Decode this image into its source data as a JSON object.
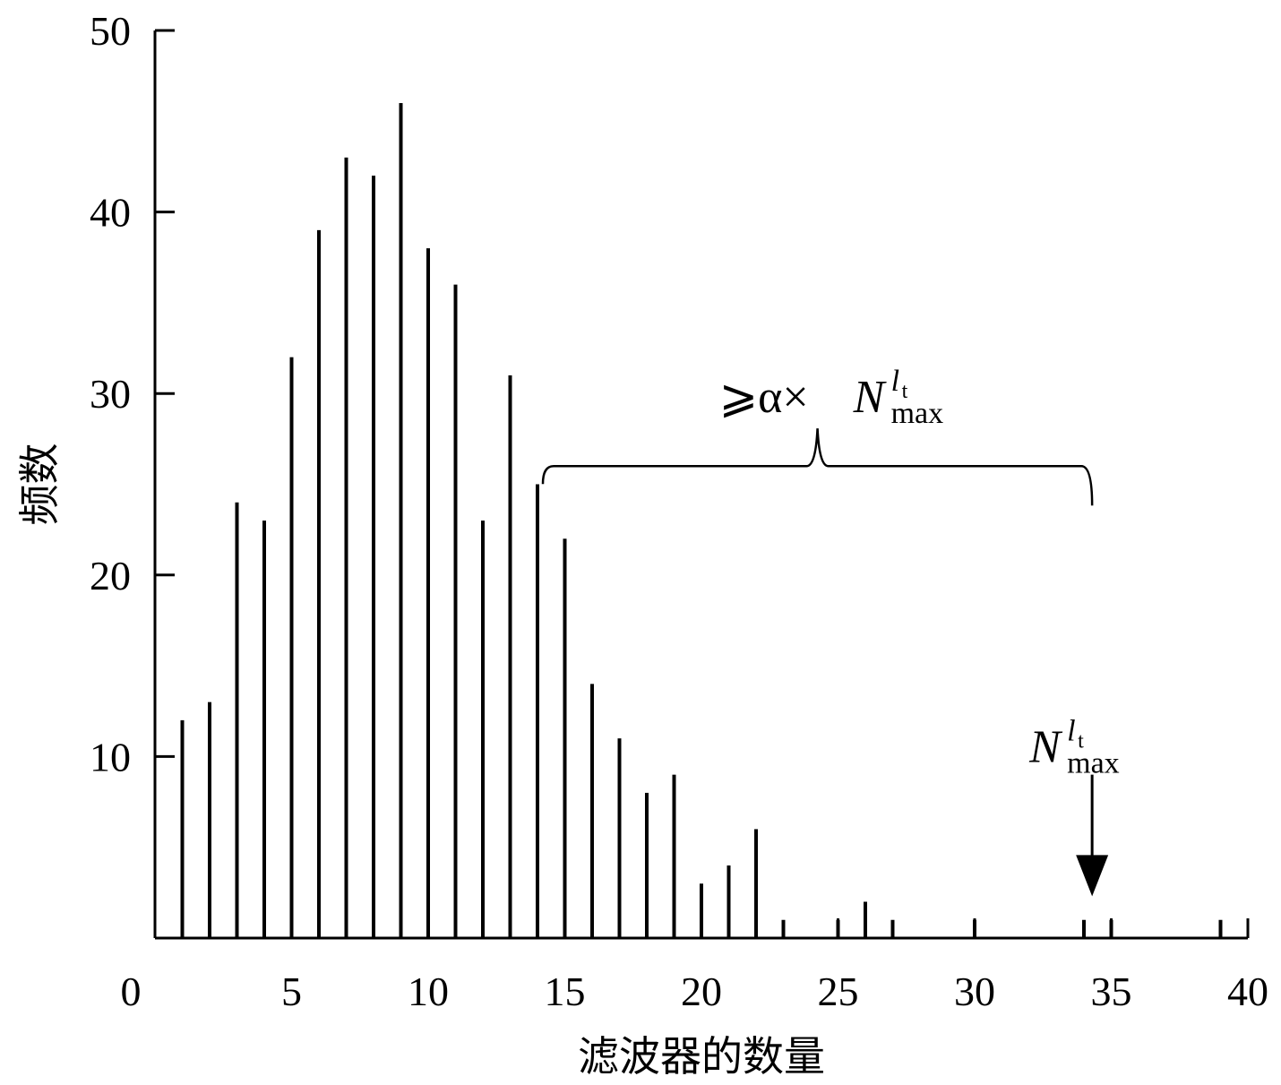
{
  "chart_data": {
    "type": "bar",
    "xlabel": "滤波器的数量",
    "ylabel": "频数",
    "xlim": [
      0,
      40
    ],
    "ylim": [
      0,
      50
    ],
    "xticks": [
      0,
      5,
      10,
      15,
      20,
      25,
      30,
      35,
      40
    ],
    "yticks": [
      10,
      20,
      30,
      40,
      50
    ],
    "tick_labels_x": [
      "0",
      "5",
      "10",
      "15",
      "20",
      "25",
      "30",
      "35",
      "40"
    ],
    "tick_labels_y": [
      "10",
      "20",
      "30",
      "40",
      "50"
    ],
    "grid": false,
    "x": [
      1,
      2,
      3,
      4,
      5,
      6,
      7,
      8,
      9,
      10,
      11,
      12,
      13,
      14,
      15,
      16,
      17,
      18,
      19,
      20,
      21,
      22,
      23,
      24,
      25,
      26,
      27,
      28,
      29,
      30,
      31,
      32,
      33,
      34,
      35,
      36,
      37,
      38,
      39
    ],
    "values": [
      12,
      13,
      24,
      23,
      32,
      39,
      43,
      42,
      46,
      38,
      36,
      23,
      31,
      25,
      22,
      14,
      11,
      8,
      9,
      3,
      4,
      6,
      1,
      0,
      1,
      2,
      1,
      0,
      0,
      1,
      0,
      0,
      0,
      1,
      1,
      0,
      0,
      0,
      1
    ],
    "annotations": {
      "brace": {
        "x_from": 14,
        "x_to": 34.3,
        "y": 26,
        "label_prefix": "⩾α×",
        "label_var": "N",
        "label_sup": "l",
        "label_sup_sub": "t",
        "label_sub": "max"
      },
      "arrow": {
        "x": 34.3,
        "y_from": 9,
        "y_to": 2.3,
        "label_var": "N",
        "label_sup": "l",
        "label_sup_sub": "t",
        "label_sub": "max"
      }
    }
  }
}
